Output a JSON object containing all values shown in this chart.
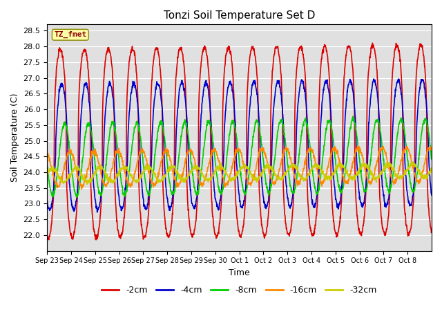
{
  "title": "Tonzi Soil Temperature Set D",
  "xlabel": "Time",
  "ylabel": "Soil Temperature (C)",
  "ylim": [
    21.5,
    28.7
  ],
  "yticks": [
    22.0,
    22.5,
    23.0,
    23.5,
    24.0,
    24.5,
    25.0,
    25.5,
    26.0,
    26.5,
    27.0,
    27.5,
    28.0,
    28.5
  ],
  "background_color": "#e0e0e0",
  "series_order": [
    "-2cm",
    "-4cm",
    "-8cm",
    "-16cm",
    "-32cm"
  ],
  "series": {
    "-2cm": {
      "color": "#dd0000",
      "lw": 1.2
    },
    "-4cm": {
      "color": "#0000cc",
      "lw": 1.2
    },
    "-8cm": {
      "color": "#00cc00",
      "lw": 1.2
    },
    "-16cm": {
      "color": "#ff8800",
      "lw": 1.2
    },
    "-32cm": {
      "color": "#cccc00",
      "lw": 1.2
    }
  },
  "annotation_text": "TZ_fmet",
  "annotation_color": "#8b0000",
  "annotation_bg": "#ffffaa",
  "annotation_border": "#888800",
  "num_days": 16,
  "points_per_day": 96,
  "depth_params": {
    "-2cm": {
      "mean": 24.9,
      "amp": 3.0,
      "phase": 0.0,
      "sharpness": 2.5
    },
    "-4cm": {
      "mean": 24.8,
      "amp": 2.0,
      "phase": 0.06,
      "sharpness": 1.5
    },
    "-8cm": {
      "mean": 24.4,
      "amp": 1.15,
      "phase": 0.18,
      "sharpness": 1.0
    },
    "-16cm": {
      "mean": 24.1,
      "amp": 0.55,
      "phase": 0.4,
      "sharpness": 1.0
    },
    "-32cm": {
      "mean": 23.9,
      "amp": 0.22,
      "phase": 0.65,
      "sharpness": 1.0
    }
  },
  "xtick_labels": [
    "Sep 23",
    "Sep 24",
    "Sep 25",
    "Sep 26",
    "Sep 27",
    "Sep 28",
    "Sep 29",
    "Sep 30",
    "Oct 1",
    "Oct 2",
    "Oct 3",
    "Oct 4",
    "Oct 5",
    "Oct 6",
    "Oct 7",
    "Oct 8"
  ],
  "xtick_days": [
    0,
    1,
    2,
    3,
    4,
    5,
    6,
    7,
    8,
    9,
    10,
    11,
    12,
    13,
    14,
    15
  ]
}
